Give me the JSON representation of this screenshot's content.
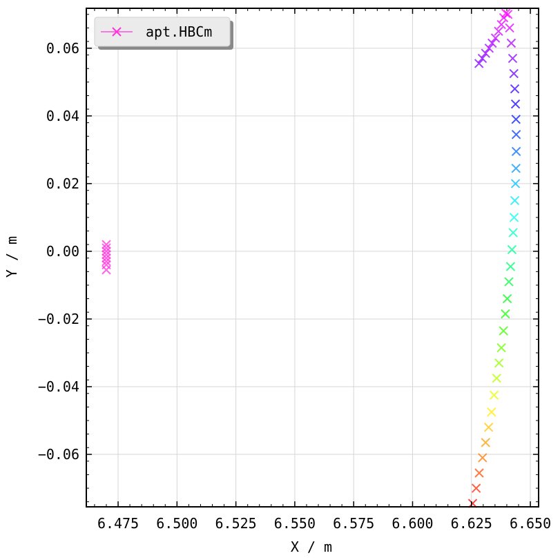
{
  "chart_data": {
    "type": "scatter",
    "title": "",
    "xlabel": "X / m",
    "ylabel": "Y / m",
    "xlim": [
      6.4615,
      6.6535
    ],
    "ylim": [
      -0.0755,
      0.0718
    ],
    "xticks": [
      6.475,
      6.5,
      6.525,
      6.55,
      6.575,
      6.6,
      6.625,
      6.65
    ],
    "xtick_labels": [
      "6.475",
      "6.500",
      "6.525",
      "6.550",
      "6.575",
      "6.600",
      "6.625",
      "6.650"
    ],
    "yticks": [
      -0.06,
      -0.04,
      -0.02,
      0.0,
      0.02,
      0.04,
      0.06
    ],
    "ytick_labels": [
      "−0.06",
      "−0.04",
      "−0.02",
      "0.00",
      "0.02",
      "0.04",
      "0.06"
    ],
    "grid": true,
    "legend": {
      "position": "top-left",
      "entries": [
        "apt.HBCm"
      ]
    },
    "marker": "x",
    "series": [
      {
        "name": "apt.HBCm",
        "color": "#ff33dd",
        "x": [
          6.47,
          6.47,
          6.47,
          6.47,
          6.47,
          6.47,
          6.47,
          6.47
        ],
        "y": [
          0.002,
          0.001,
          0.0,
          -0.001,
          -0.002,
          -0.003,
          -0.004,
          -0.0055
        ]
      },
      {
        "name": "",
        "colormap": "hsv (red at bottom to magenta at top)",
        "x": [
          6.6255,
          6.627,
          6.6283,
          6.6297,
          6.631,
          6.6323,
          6.6335,
          6.6346,
          6.6357,
          6.6367,
          6.6377,
          6.6386,
          6.6394,
          6.6402,
          6.6409,
          6.6416,
          6.6422,
          6.6427,
          6.6431,
          6.6434,
          6.6437,
          6.6439,
          6.644,
          6.644,
          6.6439,
          6.6437,
          6.6434,
          6.643,
          6.6425,
          6.6419,
          6.6412,
          6.6405,
          6.6396,
          6.6387,
          6.6377,
          6.6365,
          6.6352,
          6.6338,
          6.6325,
          6.631,
          6.6296,
          6.6282
        ],
        "y": [
          -0.0745,
          -0.07,
          -0.0655,
          -0.061,
          -0.0565,
          -0.052,
          -0.0475,
          -0.0425,
          -0.0375,
          -0.033,
          -0.0285,
          -0.0235,
          -0.0185,
          -0.014,
          -0.009,
          -0.0045,
          0.0005,
          0.0055,
          0.01,
          0.015,
          0.02,
          0.0245,
          0.0295,
          0.0345,
          0.039,
          0.0435,
          0.048,
          0.0525,
          0.057,
          0.0615,
          0.066,
          0.07,
          0.0703,
          0.069,
          0.067,
          0.065,
          0.063,
          0.0615,
          0.06,
          0.0585,
          0.057,
          0.0555
        ]
      }
    ]
  }
}
